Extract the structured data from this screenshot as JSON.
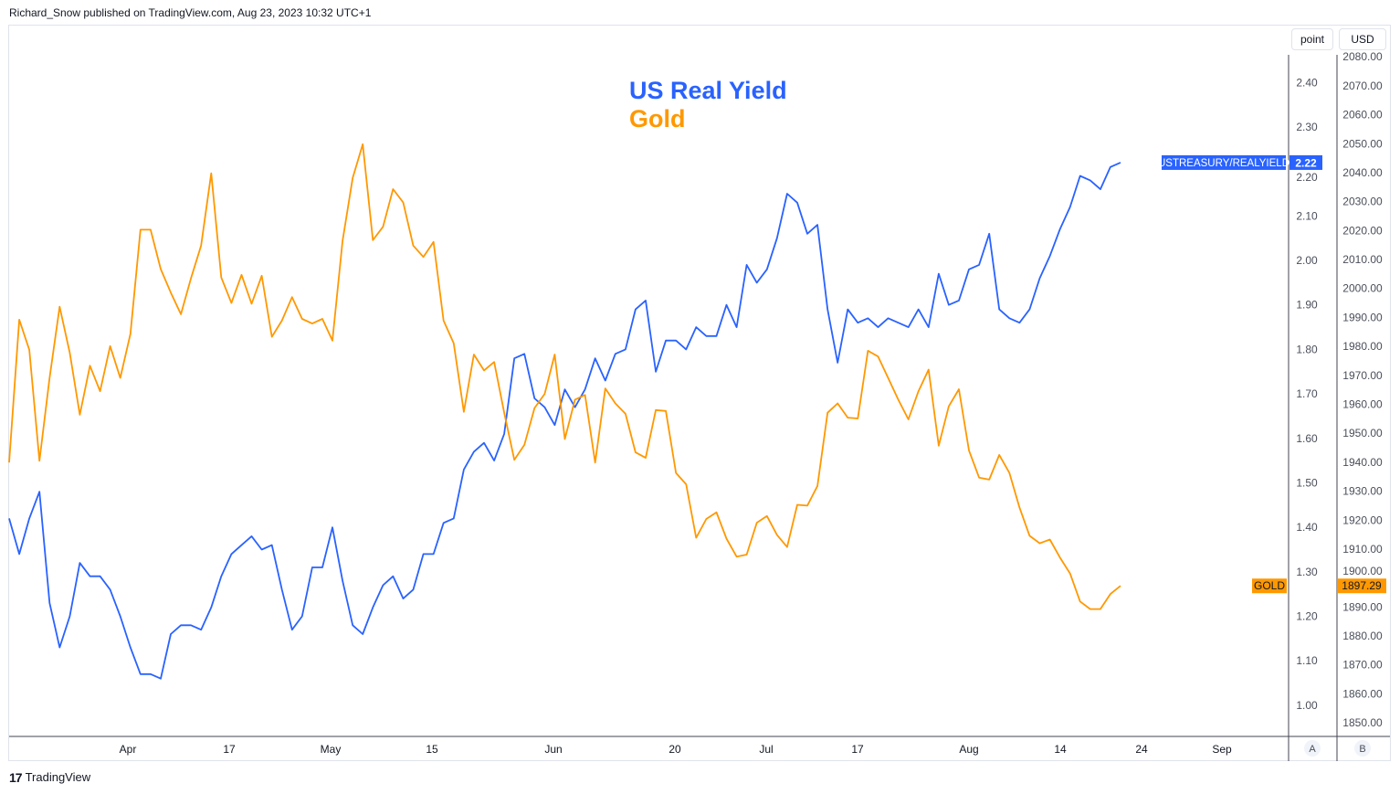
{
  "header": {
    "published_by": "Richard_Snow published on TradingView.com, Aug 23, 2023 10:32 UTC+1"
  },
  "toolbar": {
    "left_unit": "point",
    "right_unit": "USD"
  },
  "footer": {
    "brand": "TradingView",
    "logo_icon": "tradingview-logo-icon"
  },
  "scale_buttons": {
    "a": "A",
    "b": "B"
  },
  "chart_data": {
    "type": "line",
    "title": [
      "US Real Yield",
      "Gold"
    ],
    "colors": {
      "yield": "#2962ff",
      "gold": "#ff9800"
    },
    "x_start": "2023-03-16",
    "x_end": "2023-08-22",
    "x_ticks": [
      "Apr",
      "17",
      "May",
      "15",
      "Jun",
      "20",
      "Jul",
      "17",
      "Aug",
      "14",
      "24",
      "Sep"
    ],
    "left_axis": {
      "ylim": [
        0.93,
        2.53
      ],
      "ticks": [
        "2.40",
        "2.30",
        "2.20",
        "2.10",
        "2.00",
        "1.90",
        "1.80",
        "1.70",
        "1.60",
        "1.50",
        "1.40",
        "1.30",
        "1.20",
        "1.10",
        "1.00"
      ]
    },
    "right_axis": {
      "ylim": [
        1845.3,
        2091.1
      ],
      "ticks": [
        "2080.00",
        "2070.00",
        "2060.00",
        "2050.00",
        "2040.00",
        "2030.00",
        "2020.00",
        "2010.00",
        "2000.00",
        "1990.00",
        "1980.00",
        "1970.00",
        "1960.00",
        "1950.00",
        "1940.00",
        "1930.00",
        "1920.00",
        "1910.00",
        "1900.00",
        "1890.00",
        "1880.00",
        "1870.00",
        "1860.00",
        "1850.00"
      ]
    },
    "series": [
      {
        "name": "USTREASURY/REALYIELD",
        "axis": "left",
        "last_label": "2.22",
        "values": [
          1.42,
          1.34,
          1.42,
          1.48,
          1.23,
          1.13,
          1.2,
          1.32,
          1.29,
          1.29,
          1.26,
          1.2,
          1.13,
          1.07,
          1.07,
          1.06,
          1.16,
          1.18,
          1.18,
          1.17,
          1.22,
          1.29,
          1.34,
          1.36,
          1.38,
          1.35,
          1.36,
          1.26,
          1.17,
          1.2,
          1.31,
          1.31,
          1.4,
          1.28,
          1.18,
          1.16,
          1.22,
          1.27,
          1.29,
          1.24,
          1.26,
          1.34,
          1.34,
          1.41,
          1.42,
          1.53,
          1.57,
          1.59,
          1.55,
          1.61,
          1.78,
          1.79,
          1.69,
          1.67,
          1.63,
          1.71,
          1.67,
          1.71,
          1.78,
          1.73,
          1.79,
          1.8,
          1.89,
          1.91,
          1.75,
          1.82,
          1.82,
          1.8,
          1.85,
          1.83,
          1.83,
          1.9,
          1.85,
          1.99,
          1.95,
          1.98,
          2.05,
          2.15,
          2.13,
          2.06,
          2.08,
          1.89,
          1.77,
          1.89,
          1.86,
          1.87,
          1.85,
          1.87,
          1.86,
          1.85,
          1.89,
          1.85,
          1.97,
          1.9,
          1.91,
          1.98,
          1.99,
          2.06,
          1.89,
          1.87,
          1.86,
          1.89,
          1.96,
          2.01,
          2.07,
          2.12,
          2.19,
          2.18,
          2.16,
          2.21,
          2.22
        ]
      },
      {
        "name": "GOLD",
        "axis": "right",
        "last_label": "1897.29",
        "values": [
          1939.9,
          1989.2,
          1978.8,
          1940.5,
          1969.1,
          1993.7,
          1977.8,
          1956.4,
          1973.3,
          1964.5,
          1980.1,
          1969.1,
          1984.3,
          2020.3,
          2020.3,
          2006.7,
          1998.6,
          1991.1,
          2003.5,
          2014.8,
          2039.8,
          2003.8,
          1995.0,
          2004.7,
          1994.7,
          2004.4,
          1983.3,
          1988.9,
          1997.0,
          1989.5,
          1987.9,
          1989.5,
          1982.0,
          2016.4,
          2038.2,
          2049.8,
          2016.7,
          2021.3,
          2034.3,
          2029.7,
          2014.8,
          2010.9,
          2016.1,
          1988.9,
          1981.1,
          1957.4,
          1977.2,
          1971.7,
          1974.6,
          1957.1,
          1940.8,
          1946.0,
          1958.7,
          1963.6,
          1977.2,
          1948.0,
          1961.6,
          1963.2,
          1939.9,
          1965.5,
          1960.3,
          1956.7,
          1943.4,
          1941.5,
          1958.0,
          1957.7,
          1936.3,
          1932.4,
          1913.9,
          1920.4,
          1922.7,
          1913.6,
          1907.4,
          1908.1,
          1919.1,
          1921.4,
          1914.9,
          1910.7,
          1925.3,
          1925.0,
          1931.8,
          1957.1,
          1960.3,
          1955.4,
          1955.1,
          1978.5,
          1976.5,
          1969.1,
          1961.6,
          1954.8,
          1964.5,
          1972.0,
          1945.7,
          1959.3,
          1965.2,
          1944.1,
          1934.7,
          1934.0,
          1942.5,
          1936.3,
          1924.3,
          1914.6,
          1912.0,
          1913.3,
          1907.1,
          1901.6,
          1891.9,
          1889.3,
          1889.3,
          1894.5,
          1897.29
        ]
      }
    ]
  }
}
